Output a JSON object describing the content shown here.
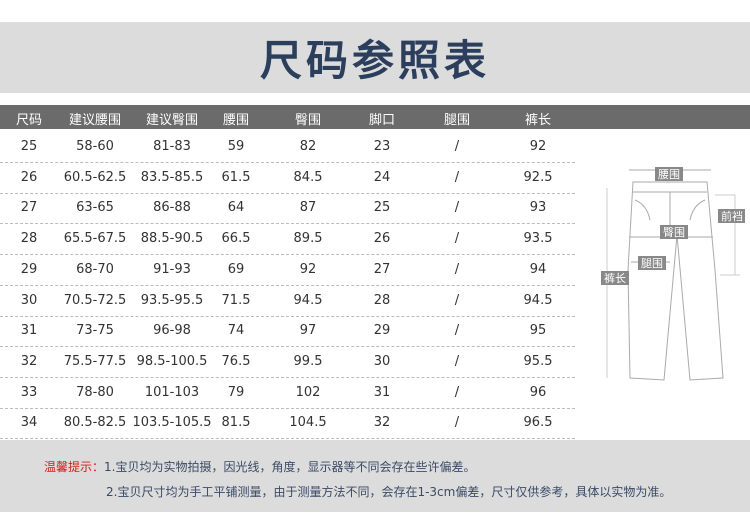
{
  "title": "尺码参照表",
  "columns": [
    "尺码",
    "建议腰围",
    "建议臀围",
    "腰围",
    "臀围",
    "脚口",
    "腿围",
    "裤长"
  ],
  "rows": [
    [
      "25",
      "58-60",
      "81-83",
      "59",
      "82",
      "23",
      "/",
      "92"
    ],
    [
      "26",
      "60.5-62.5",
      "83.5-85.5",
      "61.5",
      "84.5",
      "24",
      "/",
      "92.5"
    ],
    [
      "27",
      "63-65",
      "86-88",
      "64",
      "87",
      "25",
      "/",
      "93"
    ],
    [
      "28",
      "65.5-67.5",
      "88.5-90.5",
      "66.5",
      "89.5",
      "26",
      "/",
      "93.5"
    ],
    [
      "29",
      "68-70",
      "91-93",
      "69",
      "92",
      "27",
      "/",
      "94"
    ],
    [
      "30",
      "70.5-72.5",
      "93.5-95.5",
      "71.5",
      "94.5",
      "28",
      "/",
      "94.5"
    ],
    [
      "31",
      "73-75",
      "96-98",
      "74",
      "97",
      "29",
      "/",
      "95"
    ],
    [
      "32",
      "75.5-77.5",
      "98.5-100.5",
      "76.5",
      "99.5",
      "30",
      "/",
      "95.5"
    ],
    [
      "33",
      "78-80",
      "101-103",
      "79",
      "102",
      "31",
      "/",
      "96"
    ],
    [
      "34",
      "80.5-82.5",
      "103.5-105.5",
      "81.5",
      "104.5",
      "32",
      "/",
      "96.5"
    ]
  ],
  "diagram": {
    "waist": "腰围",
    "front_rise": "前裆",
    "hip": "臀围",
    "thigh": "腿围",
    "length": "裤长"
  },
  "footer": {
    "label": "温馨提示：",
    "note1": "1.宝贝均为实物拍摄，因光线，角度，显示器等不同会存在些许偏差。",
    "note2": "2.宝贝尺寸均为手工平铺测量，由于测量方法不同，会存在1-3cm偏差，尺寸仅供参考，具体以实物为准。"
  },
  "colors": {
    "title": "#2b3f5c",
    "header_bg": "#6b6b6b",
    "banner_bg": "#dcdcdc",
    "warn": "#d21e1e"
  }
}
